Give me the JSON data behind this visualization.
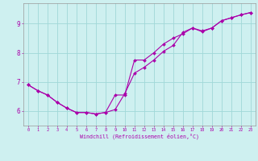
{
  "xlabel": "Windchill (Refroidissement éolien,°C)",
  "bg_color": "#cef0f0",
  "line_color": "#aa00aa",
  "grid_color": "#a0d8d8",
  "xlim": [
    -0.5,
    23.5
  ],
  "ylim": [
    5.5,
    9.7
  ],
  "yticks": [
    6,
    7,
    8,
    9
  ],
  "xticks": [
    0,
    1,
    2,
    3,
    4,
    5,
    6,
    7,
    8,
    9,
    10,
    11,
    12,
    13,
    14,
    15,
    16,
    17,
    18,
    19,
    20,
    21,
    22,
    23
  ],
  "curve1_x": [
    0,
    1,
    2,
    3,
    4,
    5,
    6,
    7,
    8,
    9,
    10,
    11,
    12,
    13,
    14,
    15,
    16,
    17,
    18,
    19,
    20,
    21,
    22,
    23
  ],
  "curve1_y": [
    6.9,
    6.7,
    6.55,
    6.3,
    6.1,
    5.95,
    5.95,
    5.9,
    5.95,
    6.55,
    6.55,
    7.75,
    7.75,
    8.0,
    8.3,
    8.5,
    8.65,
    8.85,
    8.72,
    8.85,
    9.1,
    9.2,
    9.3,
    9.38
  ],
  "curve2_x": [
    0,
    1,
    2,
    3,
    4,
    5,
    6,
    7,
    8,
    9,
    10,
    11,
    12,
    13,
    14,
    15,
    16,
    17,
    18,
    19,
    20,
    21,
    22,
    23
  ],
  "curve2_y": [
    6.9,
    6.7,
    6.55,
    6.3,
    6.1,
    5.95,
    5.95,
    5.9,
    5.95,
    6.05,
    6.6,
    7.3,
    7.5,
    7.75,
    8.05,
    8.25,
    8.7,
    8.85,
    8.75,
    8.85,
    9.1,
    9.2,
    9.3,
    9.38
  ]
}
